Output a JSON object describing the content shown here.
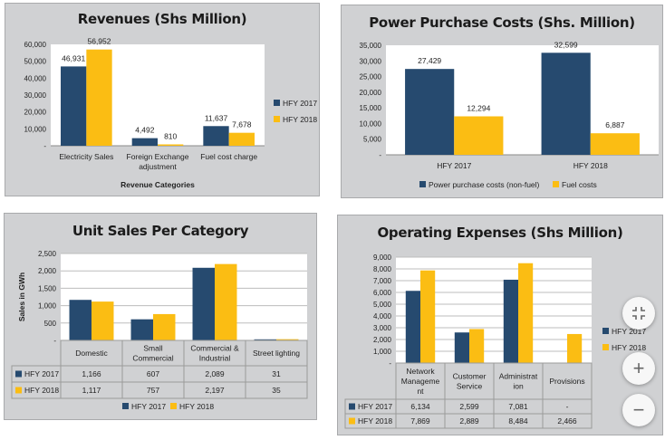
{
  "colors": {
    "hfy2017": "#264a6f",
    "hfy2018": "#fbbd13",
    "panel": "#d0d1d3",
    "plot": "#ffffff",
    "grid": "#bdbdbd"
  },
  "chart_data": [
    {
      "id": "revenues",
      "type": "bar",
      "title": "Revenues (Shs Million)",
      "xlabel": "Revenue Categories",
      "ylabel": "",
      "categories": [
        "Electricity Sales",
        "Foreign Exchange adjustment",
        "Fuel cost charge"
      ],
      "category_lines": [
        [
          "Electricity Sales"
        ],
        [
          "Foreign Exchange",
          "adjustment"
        ],
        [
          "Fuel cost charge"
        ]
      ],
      "series": [
        {
          "name": "HFY 2017",
          "values": [
            46931,
            4492,
            11637
          ],
          "labels": [
            "46,931",
            "4,492",
            "11,637"
          ]
        },
        {
          "name": "HFY 2018",
          "values": [
            56952,
            810,
            7678
          ],
          "labels": [
            "56,952",
            "810",
            "7,678"
          ]
        }
      ],
      "ylim": [
        0,
        60000
      ],
      "yticks": [
        0,
        10000,
        20000,
        30000,
        40000,
        50000,
        60000
      ],
      "ytick_labels": [
        "-",
        "10,000",
        "20,000",
        "30,000",
        "40,000",
        "50,000",
        "60,000"
      ],
      "grid": false,
      "legend": "right"
    },
    {
      "id": "power-purchase",
      "type": "bar",
      "title": "Power Purchase Costs (Shs. Million)",
      "xlabel": "",
      "ylabel": "",
      "categories": [
        "HFY 2017",
        "HFY 2018"
      ],
      "category_lines": [
        [
          "HFY 2017"
        ],
        [
          "HFY 2018"
        ]
      ],
      "series": [
        {
          "name": "Power purchase costs (non-fuel)",
          "values": [
            27429,
            32599
          ],
          "labels": [
            "27,429",
            "32,599"
          ]
        },
        {
          "name": "Fuel costs",
          "values": [
            12294,
            6887
          ],
          "labels": [
            "12,294",
            "6,887"
          ]
        }
      ],
      "ylim": [
        0,
        35000
      ],
      "yticks": [
        0,
        5000,
        10000,
        15000,
        20000,
        25000,
        30000,
        35000
      ],
      "ytick_labels": [
        "-",
        "5,000",
        "10,000",
        "15,000",
        "20,000",
        "25,000",
        "30,000",
        "35,000"
      ],
      "grid": false,
      "legend": "bottom"
    },
    {
      "id": "unit-sales",
      "type": "bar",
      "title": "Unit Sales Per Category",
      "xlabel": "",
      "ylabel": "Sales in GWh",
      "categories": [
        "Domestic",
        "Small Commercial",
        "Commercial & Industrial",
        "Street lighting"
      ],
      "category_lines": [
        [
          "Domestic"
        ],
        [
          "Small",
          "Commercial"
        ],
        [
          "Commercial &",
          "Industrial"
        ],
        [
          "Street lighting"
        ]
      ],
      "series": [
        {
          "name": "HFY 2017",
          "values": [
            1166,
            607,
            2089,
            31
          ],
          "labels": [
            "1,166",
            "607",
            "2,089",
            "31"
          ]
        },
        {
          "name": "HFY 2018",
          "values": [
            1117,
            757,
            2197,
            35
          ],
          "labels": [
            "1,117",
            "757",
            "2,197",
            "35"
          ]
        }
      ],
      "ylim": [
        0,
        2500
      ],
      "yticks": [
        0,
        500,
        1000,
        1500,
        2000,
        2500
      ],
      "ytick_labels": [
        "-",
        "500",
        "1,000",
        "1,500",
        "2,000",
        "2,500"
      ],
      "grid": true,
      "legend": "bottom",
      "data_table": true
    },
    {
      "id": "operating-expenses",
      "type": "bar",
      "title": "Operating Expenses (Shs Million)",
      "xlabel": "",
      "ylabel": "",
      "categories": [
        "Network Management",
        "Customer Service",
        "Administration",
        "Provisions"
      ],
      "category_lines": [
        [
          "Network",
          "Manageme",
          "nt"
        ],
        [
          "Customer",
          "Service"
        ],
        [
          "Administrat",
          "ion"
        ],
        [
          "Provisions"
        ]
      ],
      "series": [
        {
          "name": "HFY 2017",
          "values": [
            6134,
            2599,
            7081,
            0
          ],
          "labels": [
            "6,134",
            "2,599",
            "7,081",
            "-"
          ]
        },
        {
          "name": "HFY 2018",
          "values": [
            7869,
            2889,
            8484,
            2466
          ],
          "labels": [
            "7,869",
            "2,889",
            "8,484",
            "2,466"
          ]
        }
      ],
      "ylim": [
        0,
        9000
      ],
      "yticks": [
        0,
        1000,
        2000,
        3000,
        4000,
        5000,
        6000,
        7000,
        8000,
        9000
      ],
      "ytick_labels": [
        "-",
        "1,000",
        "2,000",
        "3,000",
        "4,000",
        "5,000",
        "6,000",
        "7,000",
        "8,000",
        "9,000"
      ],
      "grid": true,
      "legend": "right",
      "data_table": true
    }
  ],
  "controls": {
    "fit_icon": "exit-fullscreen-icon",
    "zoom_in_label": "+",
    "zoom_out_label": "−"
  }
}
